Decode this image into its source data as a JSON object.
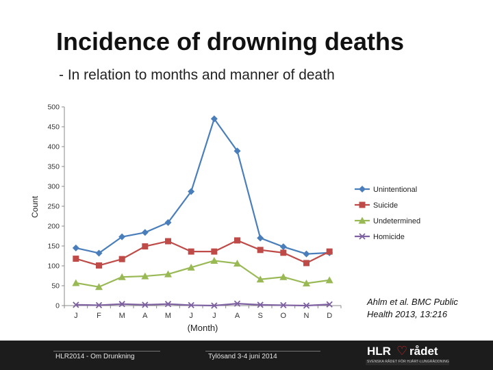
{
  "slide": {
    "title": "Incidence of drowning deaths",
    "subtitle": "- In relation to months and manner of death",
    "citation_line1": "Ahlm et al. BMC Public",
    "citation_line2": "Health 2013, 13:216"
  },
  "footer": {
    "left_text": "HLR2014 - Om Drunkning",
    "center_text": "Tylösand 3-4 juni 2014",
    "logo_left": "HLR",
    "logo_right": "rådet",
    "logo_tagline": "SVENSKA RÅDET FÖR HJÄRT-LUNGRÄDDNING"
  },
  "chart_data": {
    "type": "line",
    "title": "",
    "xlabel": "(Month)",
    "ylabel": "Count",
    "categories": [
      "J",
      "F",
      "M",
      "A",
      "M",
      "J",
      "J",
      "A",
      "S",
      "O",
      "N",
      "D"
    ],
    "ylim": [
      0,
      500
    ],
    "yticks": [
      0,
      50,
      100,
      150,
      200,
      250,
      300,
      350,
      400,
      450,
      500
    ],
    "grid": false,
    "legend": "right",
    "series": [
      {
        "name": "Unintentional",
        "color": "#4a7ebb",
        "marker": "diamond",
        "values": [
          145,
          132,
          173,
          184,
          209,
          287,
          470,
          389,
          170,
          148,
          130,
          133
        ]
      },
      {
        "name": "Suicide",
        "color": "#be4b48",
        "marker": "square",
        "values": [
          118,
          101,
          117,
          149,
          162,
          136,
          136,
          164,
          140,
          133,
          107,
          136
        ]
      },
      {
        "name": "Undetermined",
        "color": "#98b954",
        "marker": "triangle",
        "values": [
          57,
          47,
          72,
          74,
          79,
          96,
          113,
          106,
          66,
          72,
          56,
          64
        ]
      },
      {
        "name": "Homicide",
        "color": "#7d60a0",
        "marker": "x",
        "values": [
          2,
          1,
          4,
          2,
          4,
          1,
          0,
          5,
          2,
          1,
          0,
          3
        ]
      }
    ]
  }
}
